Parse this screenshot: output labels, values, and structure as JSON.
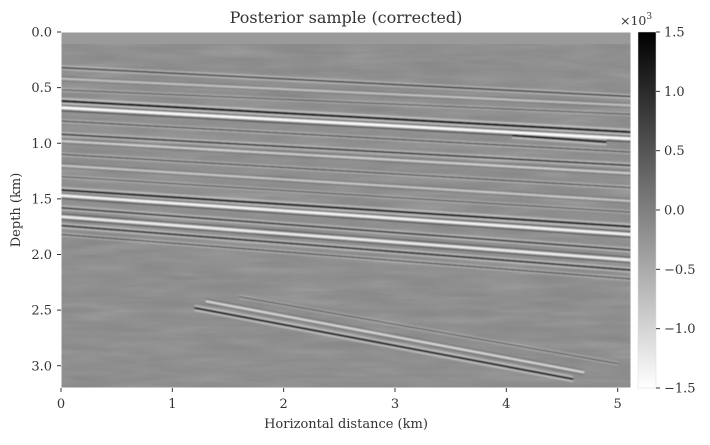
{
  "chart_data": {
    "type": "heatmap",
    "title": "Posterior sample (corrected)",
    "xlabel": "Horizontal distance (km)",
    "ylabel": "Depth (km)",
    "xlim": [
      0,
      5.12
    ],
    "ylim": [
      3.2,
      0.0
    ],
    "x_ticks": [
      0,
      1,
      2,
      3,
      4,
      5
    ],
    "y_ticks": [
      0.0,
      0.5,
      1.0,
      1.5,
      2.0,
      2.5,
      3.0
    ],
    "x_tick_labels": [
      "0",
      "1",
      "2",
      "3",
      "4",
      "5"
    ],
    "y_tick_labels": [
      "0.0",
      "0.5",
      "1.0",
      "1.5",
      "2.0",
      "2.5",
      "3.0"
    ],
    "colormap": "grayscale (white = low, black = high)",
    "colorbar": {
      "range": [
        -1.5,
        1.5
      ],
      "ticks": [
        1.5,
        1.0,
        0.5,
        0.0,
        -0.5,
        -1.0,
        -1.5
      ],
      "tick_labels": [
        "1.5",
        "1.0",
        "0.5",
        "0.0",
        "−0.5",
        "−1.0",
        "−1.5"
      ],
      "scale_prefix": "×10",
      "scale_exponent": "3"
    },
    "grid": false,
    "reflectors": [
      {
        "x0": 0.0,
        "d0": 0.32,
        "x1": 5.12,
        "d1": 0.58,
        "amp": 0.8,
        "polarity": 1
      },
      {
        "x0": 0.0,
        "d0": 0.42,
        "x1": 5.12,
        "d1": 0.66,
        "amp": 0.5,
        "polarity": -1
      },
      {
        "x0": 0.0,
        "d0": 0.52,
        "x1": 5.12,
        "d1": 0.74,
        "amp": 0.5,
        "polarity": 1
      },
      {
        "x0": 0.0,
        "d0": 0.62,
        "x1": 5.12,
        "d1": 0.9,
        "amp": 1.3,
        "polarity": 1
      },
      {
        "x0": 0.0,
        "d0": 0.68,
        "x1": 5.12,
        "d1": 0.96,
        "amp": 1.4,
        "polarity": -1
      },
      {
        "x0": 0.0,
        "d0": 0.8,
        "x1": 5.12,
        "d1": 1.08,
        "amp": 0.6,
        "polarity": 1
      },
      {
        "x0": 0.0,
        "d0": 0.92,
        "x1": 5.12,
        "d1": 1.2,
        "amp": 0.9,
        "polarity": 1
      },
      {
        "x0": 0.0,
        "d0": 0.98,
        "x1": 5.12,
        "d1": 1.27,
        "amp": 0.7,
        "polarity": -1
      },
      {
        "x0": 0.0,
        "d0": 1.1,
        "x1": 5.12,
        "d1": 1.4,
        "amp": 0.6,
        "polarity": 1
      },
      {
        "x0": 0.0,
        "d0": 1.2,
        "x1": 5.12,
        "d1": 1.52,
        "amp": 0.6,
        "polarity": -1
      },
      {
        "x0": 0.0,
        "d0": 1.3,
        "x1": 5.12,
        "d1": 1.62,
        "amp": 0.5,
        "polarity": 1
      },
      {
        "x0": 0.0,
        "d0": 1.42,
        "x1": 5.12,
        "d1": 1.75,
        "amp": 1.2,
        "polarity": 1
      },
      {
        "x0": 0.0,
        "d0": 1.47,
        "x1": 5.12,
        "d1": 1.82,
        "amp": 1.3,
        "polarity": -1
      },
      {
        "x0": 0.0,
        "d0": 1.58,
        "x1": 5.12,
        "d1": 1.96,
        "amp": 0.9,
        "polarity": 1
      },
      {
        "x0": 0.0,
        "d0": 1.66,
        "x1": 5.12,
        "d1": 2.05,
        "amp": 1.2,
        "polarity": -1
      },
      {
        "x0": 0.0,
        "d0": 1.74,
        "x1": 5.12,
        "d1": 2.14,
        "amp": 1.0,
        "polarity": 1
      },
      {
        "x0": 0.0,
        "d0": 1.82,
        "x1": 5.12,
        "d1": 2.22,
        "amp": 0.6,
        "polarity": 1
      },
      {
        "x0": 4.05,
        "d0": 0.93,
        "x1": 4.9,
        "d1": 0.99,
        "amp": 1.2,
        "polarity": 1
      },
      {
        "x0": 1.2,
        "d0": 2.48,
        "x1": 4.6,
        "d1": 3.12,
        "amp": 1.2,
        "polarity": 1
      },
      {
        "x0": 1.3,
        "d0": 2.42,
        "x1": 4.7,
        "d1": 3.06,
        "amp": 0.8,
        "polarity": -1
      },
      {
        "x0": 1.6,
        "d0": 2.38,
        "x1": 5.0,
        "d1": 2.98,
        "amp": 0.5,
        "polarity": 1
      }
    ]
  }
}
